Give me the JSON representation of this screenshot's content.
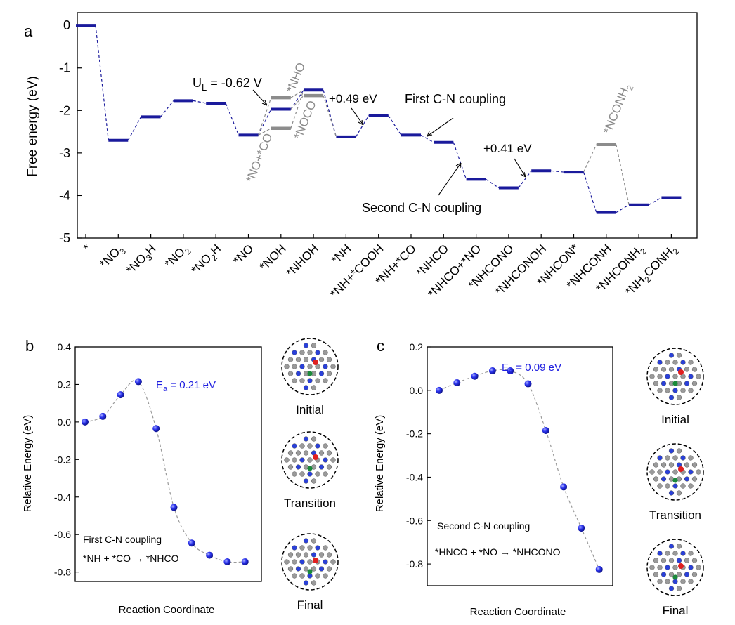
{
  "colors": {
    "blue": "#1a1a9c",
    "gray": "#8c8c8c",
    "marker": "#1c22e0",
    "annot_blue": "#2020e0"
  },
  "chart_data": [
    {
      "type": "line",
      "panel": "a",
      "ylabel": "Free energy (eV)",
      "ylim": [
        -5,
        0.3
      ],
      "yticks": [
        "0",
        "-1",
        "-2",
        "-3",
        "-4",
        "-5"
      ],
      "categories": [
        "*",
        "*NO3",
        "*NO3H",
        "*NO2",
        "*NO2H",
        "*NO",
        "*NOH",
        "*NHOH",
        "*NH",
        "*NH+*COOH",
        "*NH+*CO",
        "*NHCO",
        "*NHCO+*NO",
        "*NHCONO",
        "*NHCONOH",
        "*NHCON*",
        "*NHCONH",
        "*NHCONH2",
        "*NH2CONH2"
      ],
      "category_labels": [
        {
          "base": "*",
          "sub": ""
        },
        {
          "base": "*NO",
          "sub": "3"
        },
        {
          "base": "*NO",
          "sub": "3",
          "tail": "H"
        },
        {
          "base": "*NO",
          "sub": "2"
        },
        {
          "base": "*NO",
          "sub": "2",
          "tail": "H"
        },
        {
          "base": "*NO",
          "sub": ""
        },
        {
          "base": "*NOH",
          "sub": ""
        },
        {
          "base": "*NHOH",
          "sub": ""
        },
        {
          "base": "*NH",
          "sub": ""
        },
        {
          "base": "*NH+*COOH",
          "sub": ""
        },
        {
          "base": "*NH+*CO",
          "sub": ""
        },
        {
          "base": "*NHCO",
          "sub": ""
        },
        {
          "base": "*NHCO+*NO",
          "sub": ""
        },
        {
          "base": "*NHCONO",
          "sub": ""
        },
        {
          "base": "*NHCONOH",
          "sub": ""
        },
        {
          "base": "*NHCON*",
          "sub": ""
        },
        {
          "base": "*NHCONH",
          "sub": ""
        },
        {
          "base": "*NHCONH",
          "sub": "2"
        },
        {
          "base": "*NH",
          "sub": "2",
          "tail": "CONH",
          "sub2": "2"
        }
      ],
      "main_path": [
        0,
        -2.7,
        -2.15,
        -1.77,
        -1.83,
        -2.58,
        -1.97,
        -1.52,
        -2.62,
        -2.12,
        -2.58,
        -2.75,
        -3.62,
        -3.82,
        -3.42,
        -3.45,
        -4.4,
        -4.22,
        -4.05
      ],
      "side_branches": [
        {
          "label": "*NHO",
          "between": [
            5,
            7
          ],
          "value": -1.7
        },
        {
          "label": "*NO+*CO",
          "between": [
            5,
            7
          ],
          "value": -2.42
        },
        {
          "label": "*NOCO",
          "between": [
            6,
            8
          ],
          "value": -1.65
        },
        {
          "label": "*NCONH2",
          "label_base": "*NCONH",
          "label_sub": "2",
          "between": [
            15,
            17
          ],
          "value": -2.8
        }
      ],
      "annotations": {
        "ul": "U",
        "ul_sub": "L",
        "ul_value": " = -0.62 V",
        "step1": "+0.49 eV",
        "step2": "+0.41 eV",
        "first": "First C-N coupling",
        "second": "Second C-N coupling"
      }
    },
    {
      "type": "scatter",
      "panel": "b",
      "ylabel": "Relative Energy (eV)",
      "xlabel": "Reaction Coordinate",
      "ylim": [
        -0.85,
        0.4
      ],
      "yticks": [
        "0.4",
        "0.2",
        "0.0",
        "-0.2",
        "-0.4",
        "-0.6",
        "-0.8"
      ],
      "values": [
        0.0,
        0.03,
        0.145,
        0.215,
        -0.035,
        -0.455,
        -0.645,
        -0.71,
        -0.745,
        -0.745
      ],
      "ea_base": "E",
      "ea_sub": "a",
      "ea_value": " = 0.21 eV",
      "title": "First C-N coupling",
      "reaction": "*NH + *CO → *NHCO",
      "structures": [
        "Initial",
        "Transition",
        "Final"
      ]
    },
    {
      "type": "scatter",
      "panel": "c",
      "ylabel": "Relative Energy (eV)",
      "xlabel": "Reaction Coordinate",
      "ylim": [
        -0.9,
        0.2
      ],
      "yticks": [
        "0.2",
        "0.0",
        "-0.2",
        "-0.4",
        "-0.6",
        "-0.8"
      ],
      "values": [
        0.0,
        0.035,
        0.065,
        0.09,
        0.09,
        0.03,
        -0.185,
        -0.445,
        -0.635,
        -0.825
      ],
      "ea_base": "E",
      "ea_sub": "a",
      "ea_value": " = 0.09 eV",
      "title": "Second C-N coupling",
      "reaction": "*HNCO + *NO → *NHCONO",
      "structures": [
        "Initial",
        "Transition",
        "Final"
      ]
    }
  ],
  "panel_letters": [
    "a",
    "b",
    "c"
  ]
}
